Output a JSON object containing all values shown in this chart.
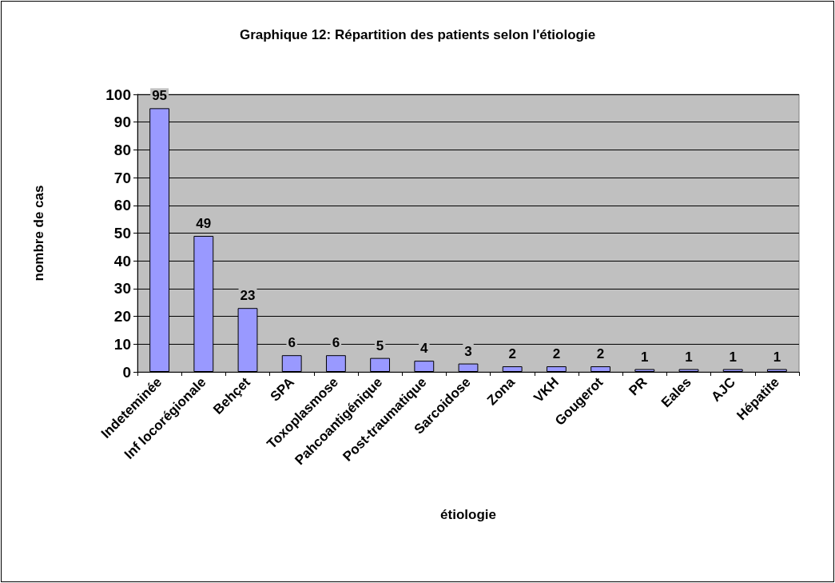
{
  "chart_data": {
    "type": "bar",
    "title": "Graphique 12: Répartition des patients selon l'étiologie",
    "xlabel": "étiologie",
    "ylabel": "nombre de cas",
    "categories": [
      "Indeteminée",
      "Inf locorégionale",
      "Behçet",
      "SPA",
      "Toxoplasmose",
      "Pahcoantigénique",
      "Post-traumatique",
      "Sarcoidose",
      "Zona",
      "VKH",
      "Gougerot",
      "PR",
      "Eales",
      "AJC",
      "Hépatite"
    ],
    "values": [
      95,
      49,
      23,
      6,
      6,
      5,
      4,
      3,
      2,
      2,
      2,
      1,
      1,
      1,
      1
    ],
    "color": "#9999ff",
    "ylim": [
      0,
      100
    ],
    "yticks": [
      0,
      10,
      20,
      30,
      40,
      50,
      60,
      70,
      80,
      90,
      100
    ],
    "grid": "y",
    "data_labels": true
  }
}
